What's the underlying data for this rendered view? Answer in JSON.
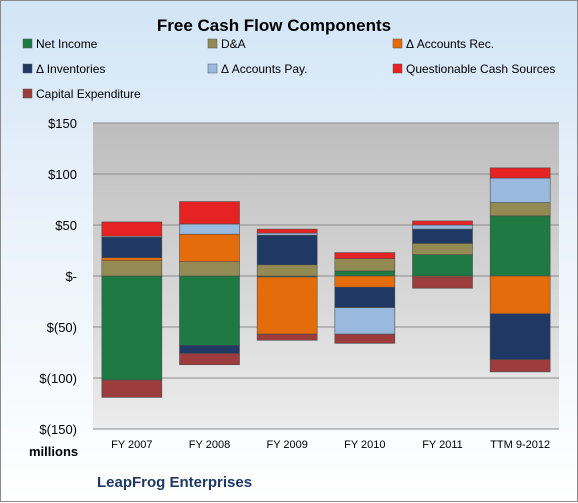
{
  "chart_data": {
    "type": "bar",
    "stacked": true,
    "title": "Free Cash Flow Components",
    "units_label": "millions",
    "company": "LeapFrog Enterprises",
    "categories": [
      "FY 2007",
      "FY 2008",
      "FY 2009",
      "FY 2010",
      "FY 2011",
      "TTM 9-2012"
    ],
    "ylim": [
      -150,
      150
    ],
    "yticks": [
      {
        "value": 150,
        "label": "$150"
      },
      {
        "value": 100,
        "label": "$100"
      },
      {
        "value": 50,
        "label": "$50"
      },
      {
        "value": 0,
        "label": "$-"
      },
      {
        "value": -50,
        "label": "$(50)"
      },
      {
        "value": -100,
        "label": "$(100)"
      },
      {
        "value": -150,
        "label": "$(150)"
      }
    ],
    "grid": true,
    "legend_position": "top",
    "series": [
      {
        "name": "Net Income",
        "color": "#1e7a42",
        "values": [
          -102,
          -68,
          -1,
          5,
          21,
          59
        ]
      },
      {
        "name": "D&A",
        "color": "#948a54",
        "values": [
          15,
          14,
          11,
          12,
          11,
          13
        ]
      },
      {
        "name": "Δ Accounts Rec.",
        "color": "#e46c0a",
        "values": [
          3,
          27,
          -56,
          -11,
          -1,
          -37
        ]
      },
      {
        "name": "Δ Inventories",
        "color": "#1f3864",
        "values": [
          20,
          -8,
          29,
          -20,
          14,
          -45
        ]
      },
      {
        "name": "Δ Accounts Pay.",
        "color": "#9ab9de",
        "values": [
          1,
          10,
          2,
          -26,
          4,
          24
        ]
      },
      {
        "name": "Questionable Cash Sources",
        "color": "#e52323",
        "values": [
          14,
          22,
          4,
          6,
          4,
          10
        ]
      },
      {
        "name": "Capital Expenditure",
        "color": "#9c3c3c",
        "values": [
          -17,
          -11,
          -6,
          -9,
          -11,
          -12
        ]
      }
    ]
  }
}
